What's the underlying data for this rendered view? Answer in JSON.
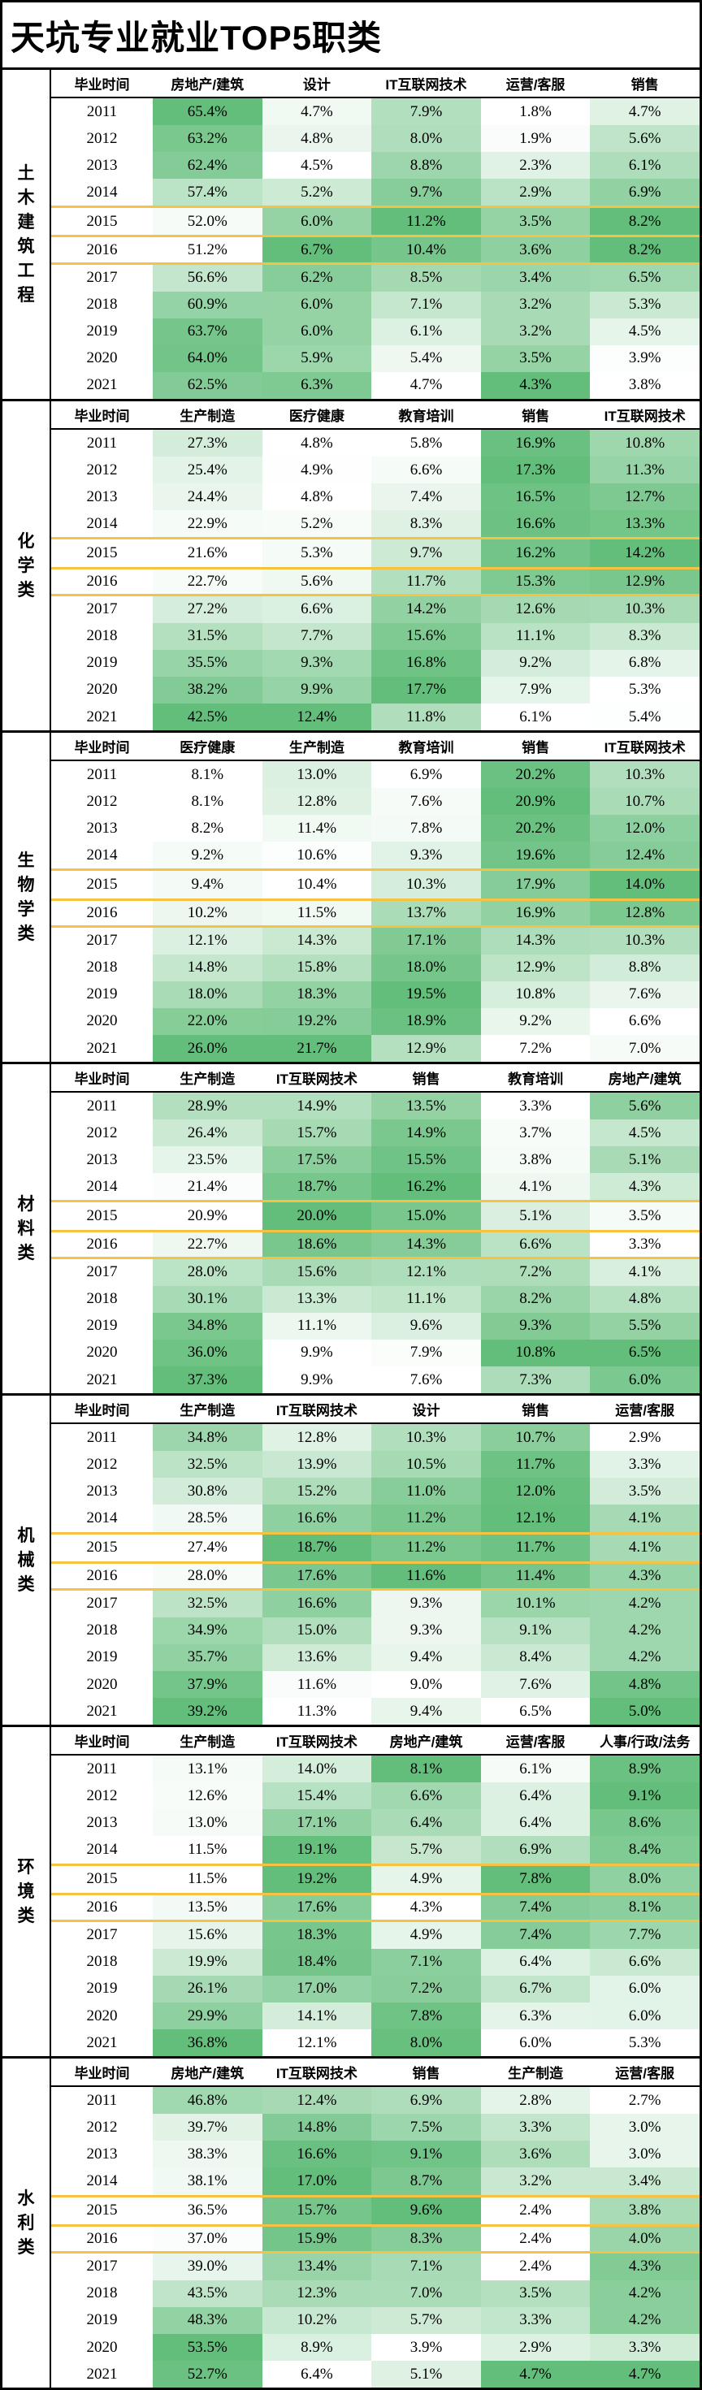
{
  "title": "天坑专业就业TOP5职类",
  "colors": {
    "heat_min": "#FFFFFF",
    "heat_max": "#63BE7B",
    "highlight": "#F5C242",
    "border": "#000000"
  },
  "chart_data": {
    "type": "heatmap",
    "title": "天坑专业就业TOP5职类",
    "unit": "%",
    "year_column_header": "毕业时间",
    "years": [
      "2011",
      "2012",
      "2013",
      "2014",
      "2015",
      "2016",
      "2017",
      "2018",
      "2019",
      "2020",
      "2021"
    ],
    "highlighted_years": [
      "2015",
      "2016"
    ],
    "colorscale": {
      "scope": "per-column",
      "min_color": "#FFFFFF",
      "max_color": "#63BE7B"
    },
    "sections": [
      {
        "label": "土木建筑工程",
        "columns": [
          "房地产/建筑",
          "设计",
          "IT互联网技术",
          "运营/客服",
          "销售"
        ],
        "values": [
          [
            65.4,
            4.7,
            7.9,
            1.8,
            4.7
          ],
          [
            63.2,
            4.8,
            8.0,
            1.9,
            5.6
          ],
          [
            62.4,
            4.5,
            8.8,
            2.3,
            6.1
          ],
          [
            57.4,
            5.2,
            9.7,
            2.9,
            6.9
          ],
          [
            52.0,
            6.0,
            11.2,
            3.5,
            8.2
          ],
          [
            51.2,
            6.7,
            10.4,
            3.6,
            8.2
          ],
          [
            56.6,
            6.2,
            8.5,
            3.4,
            6.5
          ],
          [
            60.9,
            6.0,
            7.1,
            3.2,
            5.3
          ],
          [
            63.7,
            6.0,
            6.1,
            3.2,
            4.5
          ],
          [
            64.0,
            5.9,
            5.4,
            3.5,
            3.9
          ],
          [
            62.5,
            6.3,
            4.7,
            4.3,
            3.8
          ]
        ]
      },
      {
        "label": "化学类",
        "columns": [
          "生产制造",
          "医疗健康",
          "教育培训",
          "销售",
          "IT互联网技术"
        ],
        "values": [
          [
            27.3,
            4.8,
            5.8,
            16.9,
            10.8
          ],
          [
            25.4,
            4.9,
            6.6,
            17.3,
            11.3
          ],
          [
            24.4,
            4.8,
            7.4,
            16.5,
            12.7
          ],
          [
            22.9,
            5.2,
            8.3,
            16.6,
            13.3
          ],
          [
            21.6,
            5.3,
            9.7,
            16.2,
            14.2
          ],
          [
            22.7,
            5.6,
            11.7,
            15.3,
            12.9
          ],
          [
            27.2,
            6.6,
            14.2,
            12.6,
            10.3
          ],
          [
            31.5,
            7.7,
            15.6,
            11.1,
            8.3
          ],
          [
            35.5,
            9.3,
            16.8,
            9.2,
            6.8
          ],
          [
            38.2,
            9.9,
            17.7,
            7.9,
            5.3
          ],
          [
            42.5,
            12.4,
            11.8,
            6.1,
            5.4
          ]
        ]
      },
      {
        "label": "生物学类",
        "columns": [
          "医疗健康",
          "生产制造",
          "教育培训",
          "销售",
          "IT互联网技术"
        ],
        "values": [
          [
            8.1,
            13.0,
            6.9,
            20.2,
            10.3
          ],
          [
            8.1,
            12.8,
            7.6,
            20.9,
            10.7
          ],
          [
            8.2,
            11.4,
            7.8,
            20.2,
            12.0
          ],
          [
            9.2,
            10.6,
            9.3,
            19.6,
            12.4
          ],
          [
            9.4,
            10.4,
            10.3,
            17.9,
            14.0
          ],
          [
            10.2,
            11.5,
            13.7,
            16.9,
            12.8
          ],
          [
            12.1,
            14.3,
            17.1,
            14.3,
            10.3
          ],
          [
            14.8,
            15.8,
            18.0,
            12.9,
            8.8
          ],
          [
            18.0,
            18.3,
            19.5,
            10.8,
            7.6
          ],
          [
            22.0,
            19.2,
            18.9,
            9.2,
            6.6
          ],
          [
            26.0,
            21.7,
            12.9,
            7.2,
            7.0
          ]
        ]
      },
      {
        "label": "材料类",
        "columns": [
          "生产制造",
          "IT互联网技术",
          "销售",
          "教育培训",
          "房地产/建筑"
        ],
        "values": [
          [
            28.9,
            14.9,
            13.5,
            3.3,
            5.6
          ],
          [
            26.4,
            15.7,
            14.9,
            3.7,
            4.5
          ],
          [
            23.5,
            17.5,
            15.5,
            3.8,
            5.1
          ],
          [
            21.4,
            18.7,
            16.2,
            4.1,
            4.3
          ],
          [
            20.9,
            20.0,
            15.0,
            5.1,
            3.5
          ],
          [
            22.7,
            18.6,
            14.3,
            6.6,
            3.3
          ],
          [
            28.0,
            15.6,
            12.1,
            7.2,
            4.1
          ],
          [
            30.1,
            13.3,
            11.1,
            8.2,
            4.8
          ],
          [
            34.8,
            11.1,
            9.6,
            9.3,
            5.5
          ],
          [
            36.0,
            9.9,
            7.9,
            10.8,
            6.5
          ],
          [
            37.3,
            9.9,
            7.6,
            7.3,
            6.0
          ]
        ]
      },
      {
        "label": "机械类",
        "columns": [
          "生产制造",
          "IT互联网技术",
          "设计",
          "销售",
          "运营/客服"
        ],
        "values": [
          [
            34.8,
            12.8,
            10.3,
            10.7,
            2.9
          ],
          [
            32.5,
            13.9,
            10.5,
            11.7,
            3.3
          ],
          [
            30.8,
            15.2,
            11.0,
            12.0,
            3.5
          ],
          [
            28.5,
            16.6,
            11.2,
            12.1,
            4.1
          ],
          [
            27.4,
            18.7,
            11.2,
            11.7,
            4.1
          ],
          [
            28.0,
            17.6,
            11.6,
            11.4,
            4.3
          ],
          [
            32.5,
            16.6,
            9.3,
            10.1,
            4.2
          ],
          [
            34.9,
            15.0,
            9.3,
            9.1,
            4.2
          ],
          [
            35.7,
            13.6,
            9.4,
            8.4,
            4.2
          ],
          [
            37.9,
            11.6,
            9.0,
            7.6,
            4.8
          ],
          [
            39.2,
            11.3,
            9.4,
            6.5,
            5.0
          ]
        ]
      },
      {
        "label": "环境类",
        "columns": [
          "生产制造",
          "IT互联网技术",
          "房地产/建筑",
          "运营/客服",
          "人事/行政/法务"
        ],
        "values": [
          [
            13.1,
            14.0,
            8.1,
            6.1,
            8.9
          ],
          [
            12.6,
            15.4,
            6.6,
            6.4,
            9.1
          ],
          [
            13.0,
            17.1,
            6.4,
            6.4,
            8.6
          ],
          [
            11.5,
            19.1,
            5.7,
            6.9,
            8.4
          ],
          [
            11.5,
            19.2,
            4.9,
            7.8,
            8.0
          ],
          [
            13.5,
            17.6,
            4.3,
            7.4,
            8.1
          ],
          [
            15.6,
            18.3,
            4.9,
            7.4,
            7.7
          ],
          [
            19.9,
            18.4,
            7.1,
            6.4,
            6.6
          ],
          [
            26.1,
            17.0,
            7.2,
            6.7,
            6.0
          ],
          [
            29.9,
            14.1,
            7.8,
            6.3,
            6.0
          ],
          [
            36.8,
            12.1,
            8.0,
            6.0,
            5.3
          ]
        ]
      },
      {
        "label": "水利类",
        "columns": [
          "房地产/建筑",
          "IT互联网技术",
          "销售",
          "生产制造",
          "运营/客服"
        ],
        "values": [
          [
            46.8,
            12.4,
            6.9,
            2.8,
            2.7
          ],
          [
            39.7,
            14.8,
            7.5,
            3.3,
            3.0
          ],
          [
            38.3,
            16.6,
            9.1,
            3.6,
            3.0
          ],
          [
            38.1,
            17.0,
            8.7,
            3.2,
            3.4
          ],
          [
            36.5,
            15.7,
            9.6,
            2.4,
            3.8
          ],
          [
            37.0,
            15.9,
            8.3,
            2.4,
            4.0
          ],
          [
            39.0,
            13.4,
            7.1,
            2.4,
            4.3
          ],
          [
            43.5,
            12.3,
            7.0,
            3.5,
            4.2
          ],
          [
            48.3,
            10.2,
            5.7,
            3.3,
            4.2
          ],
          [
            53.5,
            8.9,
            3.9,
            2.9,
            3.3
          ],
          [
            52.7,
            6.4,
            5.1,
            4.7,
            4.7
          ]
        ]
      }
    ]
  }
}
